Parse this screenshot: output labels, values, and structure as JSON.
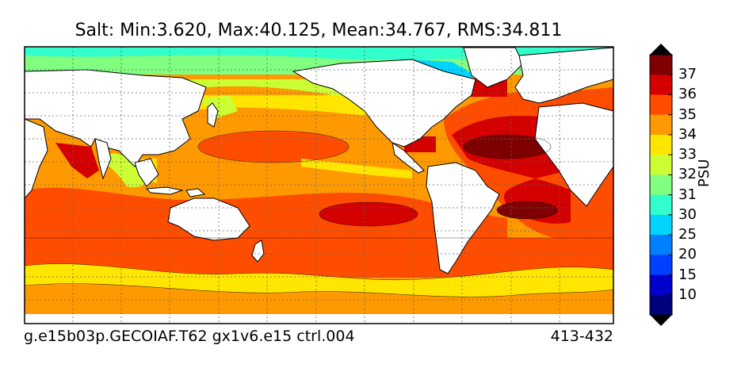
{
  "title": "Salt: Min:3.620, Max:40.125, Mean:34.767, RMS:34.811",
  "footer": {
    "case_name": "g.e15b03p.GECOIAF.T62 gx1v6.e15 ctrl.004",
    "years": "413-432"
  },
  "colorbar": {
    "label": "PSU",
    "ticks": [
      "10",
      "15",
      "20",
      "25",
      "30",
      "31",
      "32",
      "33",
      "34",
      "35",
      "36",
      "37"
    ],
    "colors": [
      "#00007f",
      "#0000cc",
      "#0040ff",
      "#0080ff",
      "#00d4ff",
      "#33ffcc",
      "#80ff80",
      "#ccff33",
      "#ffe600",
      "#ff9900",
      "#ff4d00",
      "#d40000",
      "#7f0000"
    ],
    "extend": "both"
  },
  "map": {
    "grid": true,
    "land_color": "#ffffff",
    "coastline_color": "#000000"
  }
}
